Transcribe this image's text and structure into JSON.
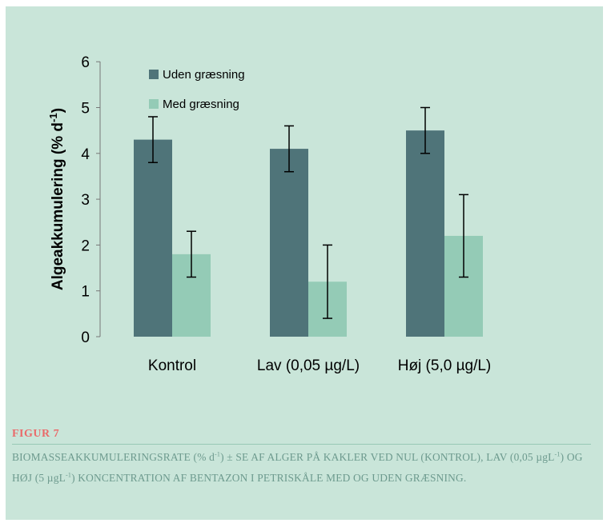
{
  "figure": {
    "label": "FIGUR 7",
    "caption": "BIOMASSEAKKUMULERINGSRATE (% d-1) ± SE AF ALGER PÅ KAKLER VED NUL (KONTROL), LAV (0,05 µgL-1) OG HØJ (5 µgL-1) KONCENTRATION AF BENTAZON I PETRISKÅLE MED OG UDEN GRÆSNING."
  },
  "chart_data": {
    "type": "bar",
    "categories": [
      "Kontrol",
      "Lav (0,05 µg/L)",
      "Høj (5,0 µg/L)"
    ],
    "series": [
      {
        "name": "Uden græsning",
        "values": [
          4.3,
          4.1,
          4.5
        ],
        "errors": [
          0.5,
          0.5,
          0.5
        ],
        "color": "#4f7479"
      },
      {
        "name": "Med græsning",
        "values": [
          1.8,
          1.2,
          2.2
        ],
        "errors": [
          0.5,
          0.8,
          0.9
        ],
        "color": "#94cbb6"
      }
    ],
    "ylabel": "Algeakkumulering (% d-1)",
    "ylim": [
      0,
      6
    ],
    "yticks": [
      "0",
      "1",
      "2",
      "3",
      "4",
      "5",
      "6"
    ],
    "legend_position": "top-left",
    "grid": false
  }
}
